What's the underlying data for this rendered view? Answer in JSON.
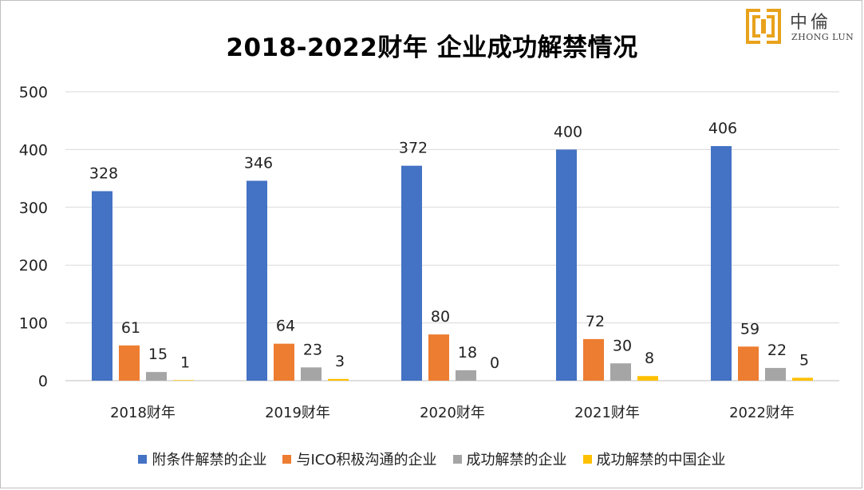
{
  "logo": {
    "cn": "中倫",
    "en": "ZHONG LUN"
  },
  "chart_data": {
    "type": "bar",
    "title": "2018-2022财年 企业成功解禁情况",
    "categories": [
      "2018财年",
      "2019财年",
      "2020财年",
      "2021财年",
      "2022财年"
    ],
    "series": [
      {
        "name": "附条件解禁的企业",
        "values": [
          328,
          346,
          372,
          400,
          406
        ],
        "color": "#4472C4"
      },
      {
        "name": "与ICO积极沟通的企业",
        "values": [
          61,
          64,
          80,
          72,
          59
        ],
        "color": "#ED7D31"
      },
      {
        "name": "成功解禁的企业",
        "values": [
          15,
          23,
          18,
          30,
          22
        ],
        "color": "#A5A5A5"
      },
      {
        "name": "成功解禁的中国企业",
        "values": [
          1,
          3,
          0,
          8,
          5
        ],
        "color": "#FFC000"
      }
    ],
    "yticks": [
      "0",
      "100",
      "200",
      "300",
      "400",
      "500"
    ],
    "ylim": [
      0,
      500
    ],
    "grid": true,
    "legend_position": "bottom"
  }
}
